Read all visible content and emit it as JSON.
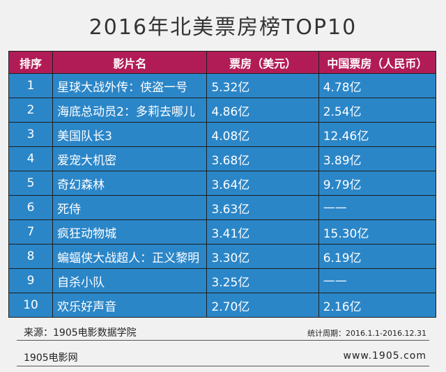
{
  "title": "2016年北美票房榜TOP10",
  "table": {
    "headers": [
      "排序",
      "影片名",
      "票房（美元）",
      "中国票房（人民币）"
    ],
    "rows": [
      {
        "rank": "1",
        "film": "星球大战外传：侠盗一号",
        "na": "5.32亿",
        "cn": "4.78亿"
      },
      {
        "rank": "2",
        "film": "海底总动员2：多莉去哪儿",
        "na": "4.86亿",
        "cn": "2.54亿"
      },
      {
        "rank": "3",
        "film": "美国队长3",
        "na": "4.08亿",
        "cn": "12.46亿"
      },
      {
        "rank": "4",
        "film": "爱宠大机密",
        "na": "3.68亿",
        "cn": "3.89亿"
      },
      {
        "rank": "5",
        "film": "奇幻森林",
        "na": "3.64亿",
        "cn": "9.79亿"
      },
      {
        "rank": "6",
        "film": "死侍",
        "na": "3.63亿",
        "cn": "——"
      },
      {
        "rank": "7",
        "film": "疯狂动物城",
        "na": "3.41亿",
        "cn": "15.30亿"
      },
      {
        "rank": "8",
        "film": "蝙蝠侠大战超人：正义黎明",
        "na": "3.30亿",
        "cn": "6.19亿"
      },
      {
        "rank": "9",
        "film": "自杀小队",
        "na": "3.25亿",
        "cn": "——"
      },
      {
        "rank": "10",
        "film": "欢乐好声音",
        "na": "2.70亿",
        "cn": "2.16亿"
      }
    ]
  },
  "footer": {
    "source": "来源：1905电影数据学院",
    "period": "统计周期：2016.1.1-2016.12.31",
    "brand": "1905电影网",
    "site": "www.1905.com"
  },
  "colors": {
    "header_bg": "#b11c57",
    "cell_bg": "#2b86c8",
    "page_bg": "#f1f1f1"
  }
}
